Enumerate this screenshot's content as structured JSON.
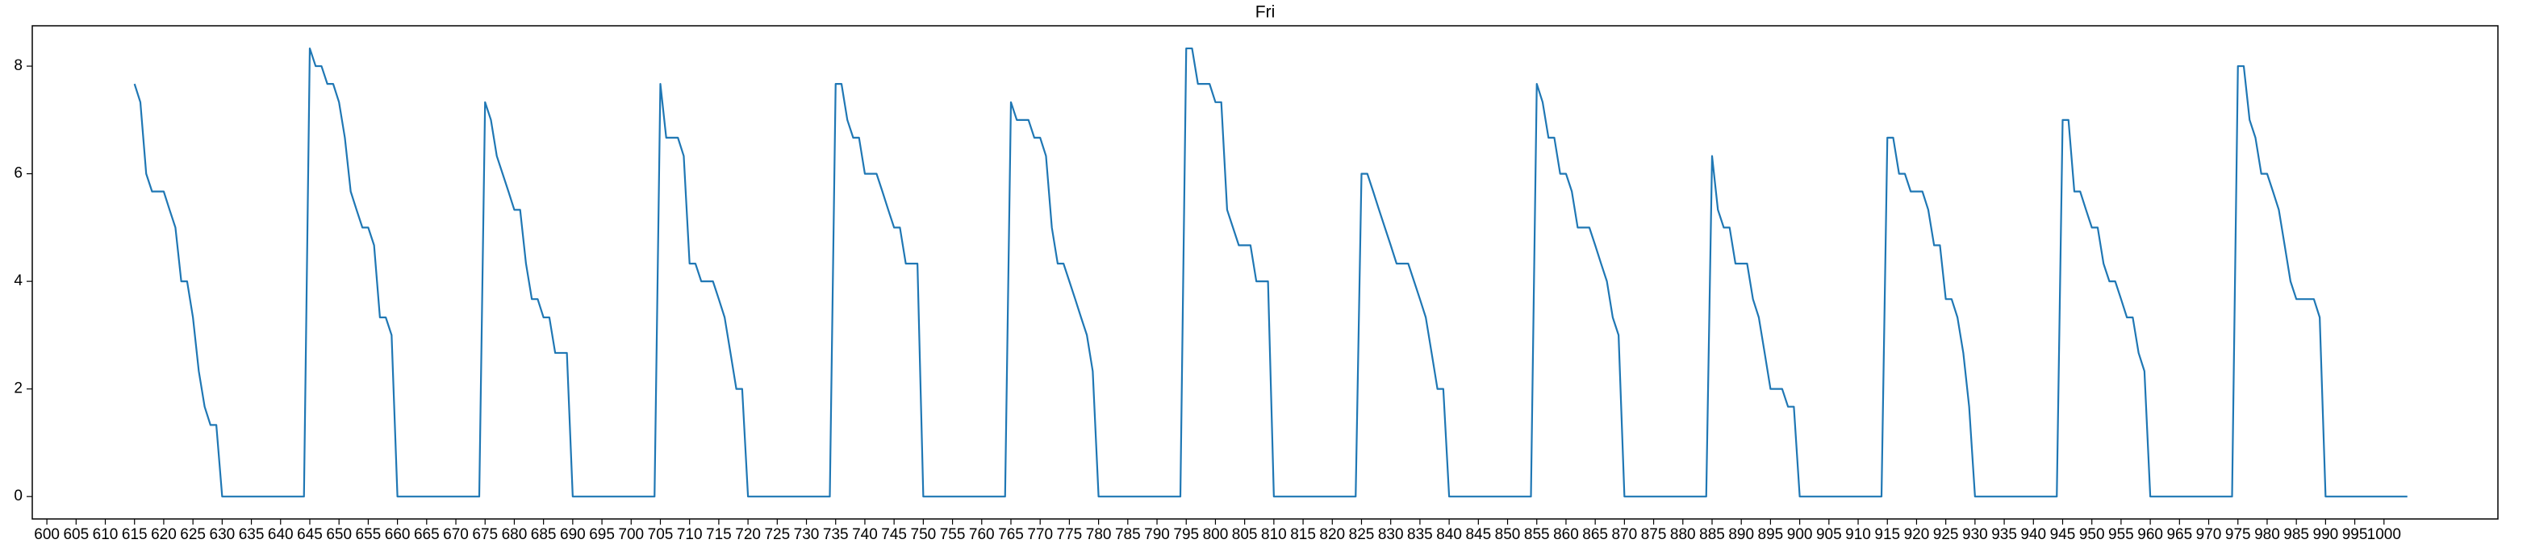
{
  "chart_data": {
    "type": "line",
    "title": "Fri",
    "x": [
      615,
      616,
      617,
      618,
      619,
      620,
      621,
      622,
      623,
      624,
      625,
      626,
      627,
      628,
      629,
      630,
      631,
      632,
      633,
      634,
      635,
      636,
      637,
      638,
      639,
      640,
      641,
      642,
      643,
      644,
      645,
      646,
      647,
      648,
      649,
      650,
      651,
      652,
      653,
      654,
      655,
      656,
      657,
      658,
      659,
      660,
      661,
      662,
      663,
      664,
      665,
      666,
      667,
      668,
      669,
      670,
      671,
      672,
      673,
      674,
      675,
      676,
      677,
      678,
      679,
      680,
      681,
      682,
      683,
      684,
      685,
      686,
      687,
      688,
      689,
      690,
      691,
      692,
      693,
      694,
      695,
      696,
      697,
      698,
      699,
      700,
      701,
      702,
      703,
      704,
      705,
      706,
      707,
      708,
      709,
      710,
      711,
      712,
      713,
      714,
      715,
      716,
      717,
      718,
      719,
      720,
      721,
      722,
      723,
      724,
      725,
      726,
      727,
      728,
      729,
      730,
      731,
      732,
      733,
      734,
      735,
      736,
      737,
      738,
      739,
      740,
      741,
      742,
      743,
      744,
      745,
      746,
      747,
      748,
      749,
      750,
      751,
      752,
      753,
      754,
      755,
      756,
      757,
      758,
      759,
      760,
      761,
      762,
      763,
      764,
      765,
      766,
      767,
      768,
      769,
      770,
      771,
      772,
      773,
      774,
      775,
      776,
      777,
      778,
      779,
      780,
      781,
      782,
      783,
      784,
      785,
      786,
      787,
      788,
      789,
      790,
      791,
      792,
      793,
      794,
      795,
      796,
      797,
      798,
      799,
      800,
      801,
      802,
      803,
      804,
      805,
      806,
      807,
      808,
      809,
      810,
      811,
      812,
      813,
      814,
      815,
      816,
      817,
      818,
      819,
      820,
      821,
      822,
      823,
      824,
      825,
      826,
      827,
      828,
      829,
      830,
      831,
      832,
      833,
      834,
      835,
      836,
      837,
      838,
      839,
      840,
      841,
      842,
      843,
      844,
      845,
      846,
      847,
      848,
      849,
      850,
      851,
      852,
      853,
      854,
      855,
      856,
      857,
      858,
      859,
      860,
      861,
      862,
      863,
      864,
      865,
      866,
      867,
      868,
      869,
      870,
      871,
      872,
      873,
      874,
      875,
      876,
      877,
      878,
      879,
      880,
      881,
      882,
      883,
      884,
      885,
      886,
      887,
      888,
      889,
      890,
      891,
      892,
      893,
      894,
      895,
      896,
      897,
      898,
      899,
      900,
      901,
      902,
      903,
      904,
      905,
      906,
      907,
      908,
      909,
      910,
      911,
      912,
      913,
      914,
      915,
      916,
      917,
      918,
      919,
      920,
      921,
      922,
      923,
      924,
      925,
      926,
      927,
      928,
      929,
      930,
      931,
      932,
      933,
      934,
      935,
      936,
      937,
      938,
      939,
      940,
      941,
      942,
      943,
      944,
      945,
      946,
      947,
      948,
      949,
      950,
      951,
      952,
      953,
      954,
      955,
      956,
      957,
      958,
      959,
      960,
      961,
      962,
      963,
      964,
      965,
      966,
      967,
      968,
      969,
      970,
      971,
      972,
      973,
      974,
      975,
      976,
      977,
      978,
      979,
      980,
      981,
      982,
      983,
      984,
      985,
      986,
      987,
      988,
      989,
      990,
      991,
      992,
      993,
      994,
      995,
      996,
      997,
      998,
      999,
      1000,
      1001,
      1002,
      1003,
      1004
    ],
    "series": [
      {
        "name": "Fri",
        "color": "#1f77b4",
        "values": [
          7.67,
          7.33,
          6,
          5.67,
          5.67,
          5.67,
          5.33,
          5,
          4,
          4,
          3.33,
          2.33,
          1.67,
          1.33,
          1.33,
          0,
          0,
          0,
          0,
          0,
          0,
          0,
          0,
          0,
          0,
          0,
          0,
          0,
          0,
          0,
          8.33,
          8,
          8,
          7.67,
          7.67,
          7.33,
          6.67,
          5.67,
          5.33,
          5,
          5,
          4.67,
          3.33,
          3.33,
          3,
          0,
          0,
          0,
          0,
          0,
          0,
          0,
          0,
          0,
          0,
          0,
          0,
          0,
          0,
          0,
          7.33,
          7,
          6.33,
          6,
          5.67,
          5.33,
          5.33,
          4.33,
          3.67,
          3.67,
          3.33,
          3.33,
          2.67,
          2.67,
          2.67,
          0,
          0,
          0,
          0,
          0,
          0,
          0,
          0,
          0,
          0,
          0,
          0,
          0,
          0,
          0,
          7.67,
          6.67,
          6.67,
          6.67,
          6.33,
          4.33,
          4.33,
          4,
          4,
          4,
          3.67,
          3.33,
          2.67,
          2,
          2,
          0,
          0,
          0,
          0,
          0,
          0,
          0,
          0,
          0,
          0,
          0,
          0,
          0,
          0,
          0,
          7.67,
          7.67,
          7,
          6.67,
          6.67,
          6,
          6,
          6,
          5.67,
          5.33,
          5,
          5,
          4.33,
          4.33,
          4.33,
          0,
          0,
          0,
          0,
          0,
          0,
          0,
          0,
          0,
          0,
          0,
          0,
          0,
          0,
          0,
          7.33,
          7,
          7,
          7,
          6.67,
          6.67,
          6.33,
          5,
          4.33,
          4.33,
          4,
          3.67,
          3.33,
          3,
          2.33,
          0,
          0,
          0,
          0,
          0,
          0,
          0,
          0,
          0,
          0,
          0,
          0,
          0,
          0,
          0,
          8.33,
          8.33,
          7.67,
          7.67,
          7.67,
          7.33,
          7.33,
          5.33,
          5,
          4.67,
          4.67,
          4.67,
          4,
          4,
          4,
          0,
          0,
          0,
          0,
          0,
          0,
          0,
          0,
          0,
          0,
          0,
          0,
          0,
          0,
          0,
          6,
          6,
          5.67,
          5.33,
          5,
          4.67,
          4.33,
          4.33,
          4.33,
          4,
          3.67,
          3.33,
          2.67,
          2,
          2,
          0,
          0,
          0,
          0,
          0,
          0,
          0,
          0,
          0,
          0,
          0,
          0,
          0,
          0,
          0,
          7.67,
          7.33,
          6.67,
          6.67,
          6,
          6,
          5.67,
          5,
          5,
          5,
          4.67,
          4.33,
          4,
          3.33,
          3,
          0,
          0,
          0,
          0,
          0,
          0,
          0,
          0,
          0,
          0,
          0,
          0,
          0,
          0,
          0,
          6.33,
          5.33,
          5,
          5,
          4.33,
          4.33,
          4.33,
          3.67,
          3.33,
          2.67,
          2,
          2,
          2,
          1.67,
          1.67,
          0,
          0,
          0,
          0,
          0,
          0,
          0,
          0,
          0,
          0,
          0,
          0,
          0,
          0,
          0,
          6.67,
          6.67,
          6,
          6,
          5.67,
          5.67,
          5.67,
          5.33,
          4.67,
          4.67,
          3.67,
          3.67,
          3.33,
          2.67,
          1.67,
          0,
          0,
          0,
          0,
          0,
          0,
          0,
          0,
          0,
          0,
          0,
          0,
          0,
          0,
          0,
          7,
          7,
          5.67,
          5.67,
          5.33,
          5,
          5,
          4.33,
          4,
          4,
          3.67,
          3.33,
          3.33,
          2.67,
          2.33,
          0,
          0,
          0,
          0,
          0,
          0,
          0,
          0,
          0,
          0,
          0,
          0,
          0,
          0,
          0,
          8,
          8,
          7,
          6.67,
          6,
          6,
          5.67,
          5.33,
          4.67,
          4,
          3.67,
          3.67,
          3.67,
          3.67,
          3.33,
          0,
          0,
          0,
          0,
          0,
          0,
          0,
          0,
          0,
          0,
          0,
          0,
          0,
          0,
          0
        ]
      }
    ],
    "xlim": [
      597.5,
      1019.5
    ],
    "xticks": [
      600,
      605,
      610,
      615,
      620,
      625,
      630,
      635,
      640,
      645,
      650,
      655,
      660,
      665,
      670,
      675,
      680,
      685,
      690,
      695,
      700,
      705,
      710,
      715,
      720,
      725,
      730,
      735,
      740,
      745,
      750,
      755,
      760,
      765,
      770,
      775,
      780,
      785,
      790,
      795,
      800,
      805,
      810,
      815,
      820,
      825,
      830,
      835,
      840,
      845,
      850,
      855,
      860,
      865,
      870,
      875,
      880,
      885,
      890,
      895,
      900,
      905,
      910,
      915,
      920,
      925,
      930,
      935,
      940,
      945,
      950,
      955,
      960,
      965,
      970,
      975,
      980,
      985,
      990,
      995,
      1000
    ],
    "ylim": [
      -0.4165,
      8.75
    ],
    "yticks": [
      0,
      2,
      4,
      6,
      8
    ]
  }
}
